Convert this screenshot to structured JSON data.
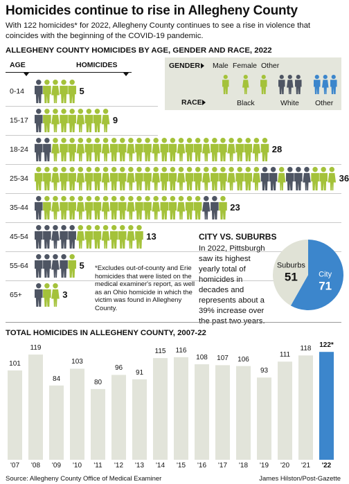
{
  "header": {
    "title": "Homicides continue to rise in Allegheny County",
    "subtitle": "With 122 homicides* for 2022, Allegheny County continues to see a rise in violence that coincides with the beginning of the COVID-19 pandemic."
  },
  "colors": {
    "green": "#a4c23a",
    "gray": "#4e5563",
    "blue": "#3c86cc",
    "panel": "#e4e6dc",
    "pie_suburbs": "#e0e2d6"
  },
  "demographics": {
    "heading": "ALLEGHENY COUNTY HOMICIDES BY AGE, GENDER AND RACE, 2022",
    "col_age": "AGE",
    "col_homicides": "HOMICIDES",
    "legend": {
      "gender_label": "GENDER",
      "race_label": "RACE",
      "male": "Male",
      "female": "Female",
      "other": "Other",
      "black": "Black",
      "white": "White",
      "race_other": "Other"
    },
    "rows": [
      {
        "age": "0-14",
        "count": "5",
        "figures": [
          "gray",
          "green",
          "green",
          "green",
          "green"
        ]
      },
      {
        "age": "15-17",
        "count": "9",
        "figures": [
          "gray",
          "green",
          "green",
          "green",
          "green",
          "green",
          "green",
          "green",
          "green"
        ]
      },
      {
        "age": "18-24",
        "count": "28",
        "figures": [
          "gray",
          "gray",
          "green",
          "green",
          "green",
          "green",
          "green",
          "green",
          "green",
          "green",
          "green",
          "green",
          "green",
          "green",
          "green",
          "green",
          "green",
          "green",
          "green",
          "green",
          "green",
          "green",
          "green",
          "green",
          "green",
          "green",
          "green",
          "green"
        ]
      },
      {
        "age": "25-34",
        "count": "36",
        "figures": [
          "green",
          "green",
          "green",
          "green",
          "green",
          "green",
          "green",
          "green",
          "green",
          "green",
          "green",
          "green",
          "green",
          "green",
          "green",
          "green",
          "green",
          "green",
          "green",
          "green",
          "green",
          "green",
          "green",
          "green",
          "green",
          "green",
          "green",
          "gray",
          "gray",
          "green",
          "gray",
          "gray",
          "gray",
          "green",
          "green",
          "green"
        ]
      },
      {
        "age": "35-44",
        "count": "23",
        "figures": [
          "gray",
          "green",
          "green",
          "green",
          "green",
          "green",
          "green",
          "green",
          "green",
          "green",
          "green",
          "green",
          "green",
          "green",
          "green",
          "green",
          "green",
          "green",
          "green",
          "green",
          "gray",
          "gray",
          "green"
        ]
      },
      {
        "age": "45-54",
        "count": "13",
        "figures": [
          "gray",
          "gray",
          "gray",
          "gray",
          "gray",
          "green",
          "green",
          "green",
          "green",
          "green",
          "green",
          "green",
          "green"
        ]
      },
      {
        "age": "55-64",
        "count": "5",
        "figures": [
          "gray",
          "gray",
          "gray",
          "gray",
          "green"
        ]
      },
      {
        "age": "65+",
        "count": "3",
        "figures": [
          "gray",
          "green",
          "green"
        ]
      }
    ],
    "footnote": "*Excludes out-of-county and Erie homicides that were listed on the medical examiner's report, as well as an Ohio homicide in which the victim was found in Allegheny County."
  },
  "city_vs_suburbs": {
    "title": "CITY VS. SUBURBS",
    "text": "In 2022, Pittsburgh saw its highest yearly total of homicides in decades and represents about a 39% increase over the past two years.",
    "chart_data": {
      "type": "pie",
      "slices": [
        {
          "label": "Suburbs",
          "value": 51,
          "color": "#e0e2d6"
        },
        {
          "label": "City",
          "value": 71,
          "color": "#3c86cc"
        }
      ]
    }
  },
  "totals": {
    "heading": "TOTAL HOMICIDES IN ALLEGHENY COUNTY, 2007-22",
    "chart_data": {
      "type": "bar",
      "categories": [
        "'07",
        "'08",
        "'09",
        "'10",
        "'11",
        "'12",
        "'13",
        "'14",
        "'15",
        "'16",
        "'17",
        "'18",
        "'19",
        "'20",
        "'21",
        "'22"
      ],
      "values": [
        101,
        119,
        84,
        103,
        80,
        96,
        91,
        115,
        116,
        108,
        107,
        106,
        93,
        111,
        118,
        122
      ],
      "value_labels": [
        "101",
        "119",
        "84",
        "103",
        "80",
        "96",
        "91",
        "115",
        "116",
        "108",
        "107",
        "106",
        "93",
        "111",
        "118",
        "122*"
      ],
      "highlight_index": 15,
      "bar_color": "#e2e4da",
      "highlight_color": "#3c86cc",
      "ylim": [
        0,
        130
      ]
    }
  },
  "footer": {
    "source": "Source: Allegheny County Office of Medical Examiner",
    "credit": "James Hilston/Post-Gazette"
  }
}
